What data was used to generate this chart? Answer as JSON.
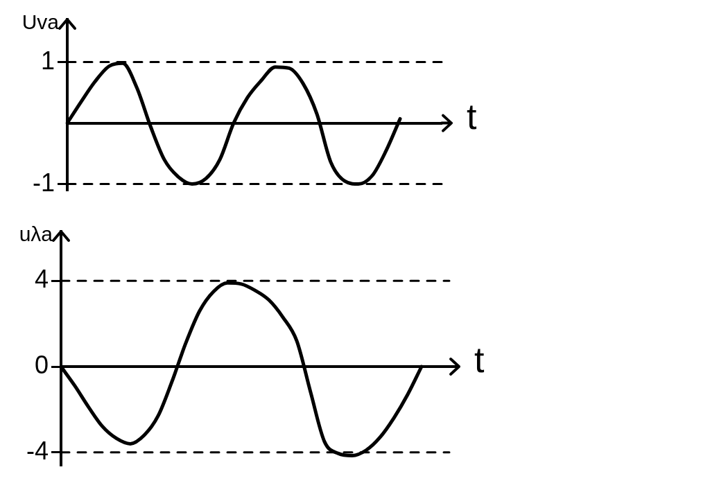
{
  "chart_data": [
    {
      "type": "line",
      "ylabel": "Uva",
      "xlabel": "t",
      "categories": [
        null,
        null,
        null,
        null,
        null,
        null,
        null,
        null,
        null,
        null,
        null,
        null,
        null,
        null,
        null,
        null,
        null,
        null,
        null,
        null,
        null,
        null,
        null,
        null,
        null,
        null,
        null,
        null
      ],
      "series": [
        {
          "color": "#000000",
          "values": [
            0,
            0.35,
            0.68,
            0.93,
            0.98,
            0.59,
            -0.05,
            -0.6,
            -0.88,
            -1.0,
            -0.91,
            -0.6,
            0,
            0.42,
            0.7,
            0.92,
            0.9,
            0.65,
            0.15,
            -0.64,
            -0.95,
            -1.0,
            -0.86,
            -0.45,
            0.07,
            null,
            null,
            null
          ]
        }
      ],
      "ylim": [
        -1.1,
        1.7
      ],
      "yticks": [
        -1,
        1
      ],
      "ref_lines": [
        {
          "axis": "y",
          "value": 1,
          "color": "#000000",
          "line_style": "dashed"
        },
        {
          "axis": "y",
          "value": -1,
          "color": "#000000",
          "line_style": "dashed"
        }
      ],
      "grid": false,
      "legend": false,
      "marker": "none",
      "tick_labels": "y"
    },
    {
      "type": "line",
      "ylabel": "uλa",
      "xlabel": "t",
      "categories": [
        null,
        null,
        null,
        null,
        null,
        null,
        null,
        null,
        null,
        null,
        null,
        null,
        null,
        null,
        null,
        null,
        null,
        null,
        null,
        null,
        null,
        null,
        null,
        null,
        null,
        null,
        null,
        null,
        null
      ],
      "series": [
        {
          "color": "#000000",
          "values": [
            0,
            -0.9,
            -1.9,
            -2.8,
            -3.35,
            -3.6,
            -3.2,
            -2.3,
            -0.7,
            1.1,
            2.6,
            3.5,
            3.9,
            3.85,
            3.55,
            3.1,
            2.3,
            1.2,
            -1.2,
            -3.5,
            -4.05,
            -4.15,
            -3.9,
            -3.3,
            -2.4,
            -1.3,
            0,
            null,
            null
          ]
        }
      ],
      "ylim": [
        -4.6,
        6.3
      ],
      "yticks": [
        -4,
        0,
        4
      ],
      "ref_lines": [
        {
          "axis": "y",
          "value": 4,
          "color": "#000000",
          "line_style": "dashed"
        },
        {
          "axis": "y",
          "value": -4,
          "color": "#000000",
          "line_style": "dashed"
        }
      ],
      "grid": false,
      "legend": false,
      "marker": "none",
      "tick_labels": "y"
    }
  ]
}
